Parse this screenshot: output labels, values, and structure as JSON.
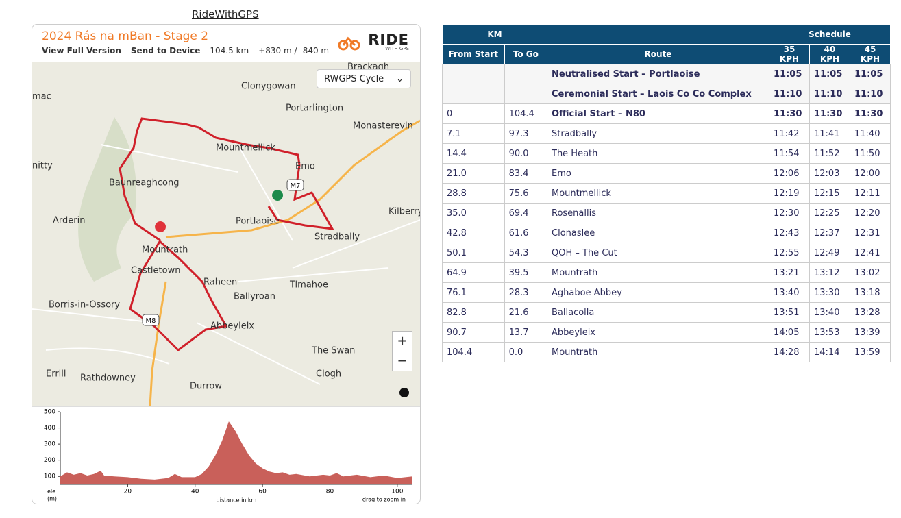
{
  "link": "RideWithGPS",
  "widget": {
    "title": "2024 Rás na mBan - Stage 2",
    "actions": [
      "View Full Version",
      "Send to Device"
    ],
    "distance": "104.5 km",
    "elevation_gain": "+830 m / -840 m",
    "logo": "RIDE",
    "logo_sub": "WITH GPS",
    "map_style": "RWGPS Cycle",
    "zoom_in": "+",
    "zoom_out": "−",
    "info": "i"
  },
  "map": {
    "places": [
      "Brackagh",
      "mac",
      "Clonygowan",
      "Portarlington",
      "Monasterevin",
      "Mountmellick",
      "nitty",
      "Emo",
      "Baunreaghcong",
      "Arderin",
      "Kilberry",
      "Portlaoise",
      "Stradbally",
      "Mountrath",
      "Castletown",
      "Raheen",
      "Timahoe",
      "Ballyroan",
      "Borris-in-Ossory",
      "Abbeyleix",
      "The Swan",
      "Errill",
      "Rathdowney",
      "Clogh",
      "Durrow"
    ],
    "shields": [
      "M7",
      "M8"
    ]
  },
  "chart_data": {
    "type": "area",
    "y_label": "ele",
    "y_unit": "(m)",
    "x_label": "distance in km",
    "hint": "drag to zoom in",
    "color": "#c9605a",
    "x": [
      0,
      2,
      4,
      6,
      8,
      10,
      12,
      13,
      16,
      20,
      24,
      28,
      32,
      34,
      36,
      40,
      42,
      44,
      46,
      48,
      50,
      52,
      54,
      56,
      58,
      60,
      62,
      64,
      66,
      68,
      70,
      74,
      78,
      80,
      82,
      84,
      88,
      92,
      96,
      100,
      104.5
    ],
    "values": [
      100,
      125,
      110,
      120,
      105,
      115,
      135,
      105,
      100,
      95,
      85,
      80,
      90,
      115,
      95,
      95,
      115,
      160,
      230,
      320,
      440,
      380,
      300,
      230,
      180,
      150,
      130,
      120,
      125,
      110,
      115,
      100,
      110,
      105,
      120,
      100,
      110,
      95,
      105,
      90,
      100
    ],
    "xlim": [
      0,
      104.5
    ],
    "ylim": [
      50,
      500
    ],
    "xticks": [
      20,
      40,
      60,
      80,
      100
    ],
    "yticks": [
      100,
      200,
      300,
      400,
      500
    ]
  },
  "table": {
    "group_headers": [
      "KM",
      "Schedule"
    ],
    "headers": [
      "From Start",
      "To Go",
      "Route",
      "35 KPH",
      "40 KPH",
      "45 KPH"
    ],
    "bold_rows": [
      0,
      1,
      2
    ],
    "rows": [
      [
        null,
        null,
        "Neutralised Start – Portlaoise",
        "11:05",
        "11:05",
        "11:05"
      ],
      [
        null,
        null,
        "Ceremonial Start – Laois Co Co Complex",
        "11:10",
        "11:10",
        "11:10"
      ],
      [
        "0",
        "104.4",
        "Official Start – N80",
        "11:30",
        "11:30",
        "11:30"
      ],
      [
        "7.1",
        "97.3",
        "Stradbally",
        "11:42",
        "11:41",
        "11:40"
      ],
      [
        "14.4",
        "90.0",
        "The Heath",
        "11:54",
        "11:52",
        "11:50"
      ],
      [
        "21.0",
        "83.4",
        "Emo",
        "12:06",
        "12:03",
        "12:00"
      ],
      [
        "28.8",
        "75.6",
        "Mountmellick",
        "12:19",
        "12:15",
        "12:11"
      ],
      [
        "35.0",
        "69.4",
        "Rosenallis",
        "12:30",
        "12:25",
        "12:20"
      ],
      [
        "42.8",
        "61.6",
        "Clonaslee",
        "12:43",
        "12:37",
        "12:31"
      ],
      [
        "50.1",
        "54.3",
        "QOH – The Cut",
        "12:55",
        "12:49",
        "12:41"
      ],
      [
        "64.9",
        "39.5",
        "Mountrath",
        "13:21",
        "13:12",
        "13:02"
      ],
      [
        "76.1",
        "28.3",
        "Aghaboe Abbey",
        "13:40",
        "13:30",
        "13:18"
      ],
      [
        "82.8",
        "21.6",
        "Ballacolla",
        "13:51",
        "13:40",
        "13:28"
      ],
      [
        "90.7",
        "13.7",
        "Abbeyleix",
        "14:05",
        "13:53",
        "13:39"
      ],
      [
        "104.4",
        "0.0",
        "Mountrath",
        "14:28",
        "14:14",
        "13:59"
      ]
    ]
  }
}
